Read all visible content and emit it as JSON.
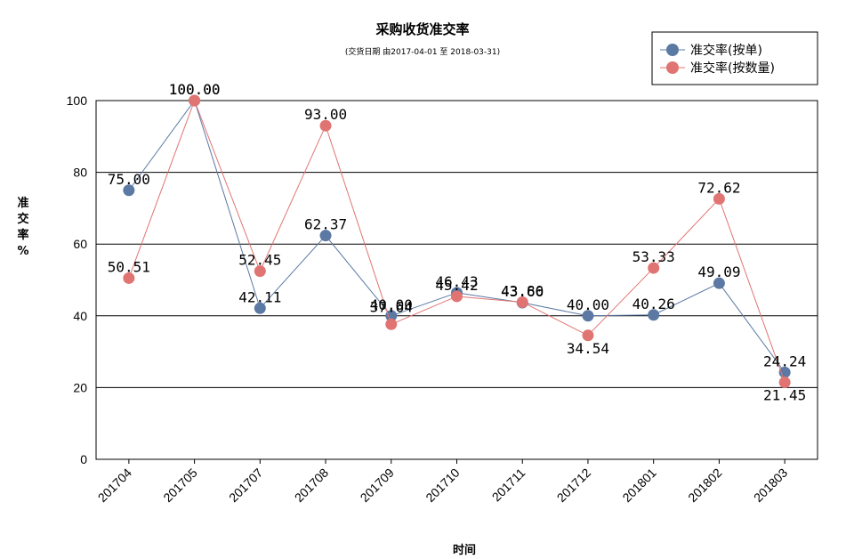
{
  "chart_data": {
    "type": "line",
    "title": "采购收货准交率",
    "subtitle": "(交货日期 由2017-04-01 至 2018-03-31)",
    "xlabel": "时间",
    "ylabel": "准交率%",
    "ylim": [
      0,
      100
    ],
    "yticks": [
      0,
      20,
      40,
      60,
      80,
      100
    ],
    "grid": true,
    "legend_position": "top-right",
    "categories": [
      "201704",
      "201705",
      "201707",
      "201708",
      "201709",
      "201710",
      "201711",
      "201712",
      "201801",
      "201802",
      "201803"
    ],
    "series": [
      {
        "name": "准交率(按单)",
        "color": "#5b79a3",
        "values": [
          75.0,
          100.0,
          42.11,
          62.37,
          40.0,
          46.43,
          43.66,
          40.0,
          40.26,
          49.09,
          24.24
        ],
        "labels": [
          "75.00",
          "100.00",
          "42.11",
          "62.37",
          "40.00",
          "46.43",
          "43.66",
          "40.00",
          "40.26",
          "49.09",
          "24.24"
        ]
      },
      {
        "name": "准交率(按数量)",
        "color": "#e07472",
        "values": [
          50.51,
          100.0,
          52.45,
          93.0,
          37.64,
          45.42,
          43.8,
          34.54,
          53.33,
          72.62,
          21.45
        ],
        "labels": [
          "50.51",
          "100.00",
          "52.45",
          "93.00",
          "37.64",
          "45.42",
          "43.80",
          "34.54",
          "53.33",
          "72.62",
          "21.45"
        ]
      }
    ]
  }
}
